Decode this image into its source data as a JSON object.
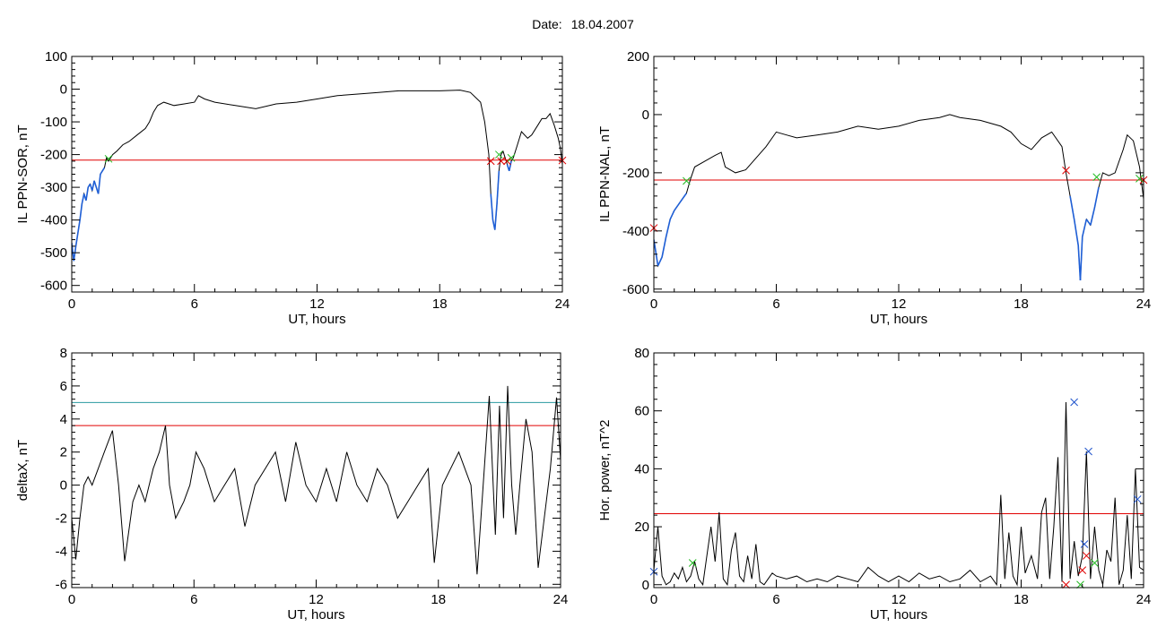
{
  "page": {
    "date_label": "Date:",
    "date_value": "18.04.2007"
  },
  "colors": {
    "trace": "#000000",
    "low_segment": "#1f5fd6",
    "threshold_red": "#e00000",
    "threshold_teal": "#2a9aa0",
    "marker_red": "#e00000",
    "marker_green": "#22bb22",
    "marker_blue": "#2255cc"
  },
  "chart_data": [
    {
      "id": "ppn-sor",
      "type": "line",
      "xlabel": "UT, hours",
      "ylabel": "IL PPN-SOR, nT",
      "xlim": [
        0,
        24
      ],
      "ylim": [
        -620,
        100
      ],
      "xticks": [
        0,
        6,
        12,
        18,
        24
      ],
      "yticks": [
        100,
        0,
        -100,
        -200,
        -300,
        -400,
        -500,
        -600
      ],
      "thresholds": [
        {
          "value": -217,
          "color": "#e00000"
        }
      ],
      "highlight_below": -217,
      "series": [
        {
          "x": [
            0,
            0.1,
            0.2,
            0.3,
            0.4,
            0.5,
            0.6,
            0.7,
            0.8,
            0.9,
            1.0,
            1.1,
            1.2,
            1.3,
            1.4,
            1.5,
            1.6,
            1.7,
            1.8,
            2.0,
            2.2,
            2.5,
            2.8,
            3.2,
            3.6,
            3.8,
            4.0,
            4.2,
            4.5,
            5.0,
            5.5,
            6.0,
            6.2,
            6.5,
            7,
            8,
            9,
            10,
            11,
            12,
            13,
            14,
            15,
            16,
            17,
            18,
            19,
            19.5,
            20.0,
            20.2,
            20.4,
            20.5,
            20.6,
            20.7,
            20.8,
            20.9,
            21.0,
            21.1,
            21.2,
            21.3,
            21.4,
            21.5,
            21.6,
            21.8,
            22.0,
            22.3,
            22.5,
            22.8,
            23.0,
            23.2,
            23.4,
            23.6,
            23.8,
            23.9,
            24.0
          ],
          "y": [
            -470,
            -525,
            -480,
            -440,
            -400,
            -350,
            -320,
            -340,
            -300,
            -290,
            -310,
            -280,
            -300,
            -320,
            -260,
            -250,
            -240,
            -210,
            -220,
            -200,
            -190,
            -170,
            -160,
            -140,
            -120,
            -100,
            -70,
            -50,
            -40,
            -50,
            -45,
            -40,
            -20,
            -30,
            -40,
            -50,
            -60,
            -45,
            -40,
            -30,
            -20,
            -15,
            -10,
            -5,
            -5,
            -5,
            -3,
            -10,
            -40,
            -100,
            -200,
            -320,
            -400,
            -430,
            -350,
            -250,
            -200,
            -190,
            -210,
            -230,
            -250,
            -220,
            -210,
            -170,
            -130,
            -150,
            -140,
            -110,
            -90,
            -90,
            -75,
            -110,
            -150,
            -180,
            -230
          ]
        }
      ],
      "markers": [
        {
          "x": 20.5,
          "y": -220,
          "color": "#e00000"
        },
        {
          "x": 21.0,
          "y": -220,
          "color": "#e00000"
        },
        {
          "x": 21.3,
          "y": -220,
          "color": "#e00000"
        },
        {
          "x": 24.0,
          "y": -218,
          "color": "#e00000"
        },
        {
          "x": 1.8,
          "y": -213,
          "color": "#22bb22"
        },
        {
          "x": 20.9,
          "y": -200,
          "color": "#22bb22"
        },
        {
          "x": 21.5,
          "y": -210,
          "color": "#22bb22"
        }
      ]
    },
    {
      "id": "ppn-nal",
      "type": "line",
      "xlabel": "UT, hours",
      "ylabel": "IL PPN-NAL, nT",
      "xlim": [
        0,
        24
      ],
      "ylim": [
        -610,
        200
      ],
      "xticks": [
        0,
        6,
        12,
        18,
        24
      ],
      "yticks": [
        200,
        0,
        -200,
        -400,
        -600
      ],
      "thresholds": [
        {
          "value": -225,
          "color": "#e00000"
        }
      ],
      "highlight_below": -225,
      "series": [
        {
          "x": [
            0,
            0.2,
            0.4,
            0.6,
            0.8,
            1.0,
            1.2,
            1.4,
            1.6,
            1.8,
            2.0,
            2.5,
            3.0,
            3.3,
            3.5,
            4.0,
            4.5,
            5.0,
            5.5,
            6.0,
            6.5,
            7,
            8,
            9,
            10,
            11,
            12,
            13,
            14,
            14.5,
            15,
            16,
            17,
            17.5,
            18,
            18.5,
            19.0,
            19.5,
            20.0,
            20.2,
            20.4,
            20.6,
            20.8,
            20.9,
            21.0,
            21.2,
            21.4,
            21.6,
            21.8,
            22.0,
            22.3,
            22.6,
            23.0,
            23.2,
            23.5,
            23.8,
            24.0
          ],
          "y": [
            -430,
            -520,
            -490,
            -420,
            -360,
            -330,
            -310,
            -290,
            -270,
            -220,
            -180,
            -160,
            -140,
            -130,
            -180,
            -200,
            -190,
            -150,
            -110,
            -60,
            -70,
            -80,
            -70,
            -60,
            -40,
            -50,
            -40,
            -20,
            -10,
            0,
            -10,
            -20,
            -40,
            -60,
            -100,
            -120,
            -80,
            -60,
            -110,
            -200,
            -280,
            -360,
            -450,
            -570,
            -420,
            -360,
            -380,
            -320,
            -250,
            -200,
            -210,
            -200,
            -120,
            -70,
            -90,
            -180,
            -290
          ]
        }
      ],
      "markers": [
        {
          "x": 0.0,
          "y": -390,
          "color": "#e00000"
        },
        {
          "x": 20.2,
          "y": -192,
          "color": "#e00000"
        },
        {
          "x": 24.0,
          "y": -225,
          "color": "#e00000"
        },
        {
          "x": 1.6,
          "y": -228,
          "color": "#22bb22"
        },
        {
          "x": 21.7,
          "y": -215,
          "color": "#22bb22"
        },
        {
          "x": 23.8,
          "y": -220,
          "color": "#22bb22"
        }
      ]
    },
    {
      "id": "deltax",
      "type": "line",
      "xlabel": "UT, hours",
      "ylabel": "deltaX, nT",
      "xlim": [
        0,
        24
      ],
      "ylim": [
        -6.2,
        8
      ],
      "xticks": [
        0,
        6,
        12,
        18,
        24
      ],
      "yticks": [
        8,
        6,
        4,
        2,
        0,
        -2,
        -4,
        -6
      ],
      "thresholds": [
        {
          "value": 5.0,
          "color": "#2a9aa0"
        },
        {
          "value": 3.6,
          "color": "#e00000"
        }
      ],
      "series": [
        {
          "x": [
            0,
            0.2,
            0.4,
            0.6,
            0.8,
            1.0,
            1.3,
            1.6,
            2.0,
            2.3,
            2.6,
            3.0,
            3.3,
            3.6,
            4.0,
            4.3,
            4.6,
            4.8,
            5.1,
            5.5,
            5.8,
            6.1,
            6.5,
            7.0,
            7.5,
            8.0,
            8.5,
            9.0,
            9.5,
            10.0,
            10.5,
            11.0,
            11.5,
            12.0,
            12.5,
            13.0,
            13.5,
            14.0,
            14.5,
            15.0,
            15.5,
            16.0,
            16.5,
            17.0,
            17.5,
            17.8,
            18.2,
            18.6,
            19.0,
            19.3,
            19.6,
            19.9,
            20.2,
            20.5,
            20.8,
            21.0,
            21.2,
            21.4,
            21.6,
            21.8,
            22.0,
            22.3,
            22.6,
            22.9,
            23.2,
            23.5,
            23.8,
            24.0
          ],
          "y": [
            -2,
            -4.5,
            -2,
            0,
            0.5,
            0,
            1,
            2,
            3.3,
            0,
            -4.6,
            -1,
            0,
            -1,
            1,
            2,
            3.6,
            0,
            -2,
            -1,
            0,
            2,
            1,
            -1,
            0,
            1,
            -2.5,
            0,
            1,
            2,
            -1,
            2.6,
            0,
            -1,
            1,
            -1,
            2,
            0,
            -1,
            1,
            0,
            -2,
            -1,
            0,
            1,
            -4.7,
            0,
            1,
            2,
            1,
            0,
            -5.4,
            0,
            5.4,
            -3,
            4.8,
            -2,
            6.0,
            0,
            -3,
            0,
            4,
            2,
            -5,
            -2,
            1,
            5.3,
            1.5
          ]
        }
      ],
      "markers": []
    },
    {
      "id": "hor-power",
      "type": "line",
      "xlabel": "UT, hours",
      "ylabel": "Hor. power, nT^2",
      "xlim": [
        0,
        24
      ],
      "ylim": [
        -1,
        80
      ],
      "xticks": [
        0,
        6,
        12,
        18,
        24
      ],
      "yticks": [
        80,
        60,
        40,
        20,
        0
      ],
      "thresholds": [
        {
          "value": 24.5,
          "color": "#e00000"
        }
      ],
      "series": [
        {
          "x": [
            0,
            0.2,
            0.4,
            0.6,
            0.8,
            1.0,
            1.2,
            1.4,
            1.6,
            1.8,
            2.0,
            2.2,
            2.4,
            2.6,
            2.8,
            3.0,
            3.2,
            3.4,
            3.6,
            3.8,
            4.0,
            4.2,
            4.4,
            4.6,
            4.8,
            5.0,
            5.2,
            5.4,
            5.6,
            5.8,
            6.0,
            6.5,
            7.0,
            7.5,
            8.0,
            8.5,
            9.0,
            9.5,
            10.0,
            10.5,
            11.0,
            11.5,
            12.0,
            12.5,
            13.0,
            13.5,
            14.0,
            14.5,
            15.0,
            15.5,
            16.0,
            16.5,
            16.8,
            17.0,
            17.2,
            17.4,
            17.6,
            17.8,
            18.0,
            18.2,
            18.5,
            18.8,
            19.0,
            19.2,
            19.4,
            19.6,
            19.8,
            20.0,
            20.2,
            20.4,
            20.6,
            20.8,
            21.0,
            21.2,
            21.4,
            21.6,
            21.8,
            22.0,
            22.2,
            22.4,
            22.6,
            22.8,
            23.0,
            23.2,
            23.4,
            23.6,
            23.8,
            24.0
          ],
          "y": [
            5,
            20,
            3,
            0,
            1,
            4,
            2,
            6,
            1,
            3,
            8,
            2,
            0,
            10,
            20,
            8,
            25,
            2,
            0,
            12,
            18,
            3,
            1,
            10,
            2,
            14,
            1,
            0,
            2,
            4,
            3,
            2,
            3,
            1,
            2,
            1,
            3,
            2,
            1,
            6,
            3,
            1,
            3,
            1,
            4,
            2,
            3,
            1,
            2,
            5,
            1,
            3,
            0,
            31,
            2,
            18,
            3,
            0,
            20,
            4,
            10,
            2,
            25,
            30,
            2,
            20,
            44,
            1,
            63,
            2,
            15,
            3,
            10,
            46,
            2,
            20,
            5,
            0,
            12,
            8,
            30,
            0,
            5,
            24,
            2,
            40,
            6,
            5
          ]
        }
      ],
      "markers": [
        {
          "x": 20.6,
          "y": 63,
          "color": "#2255cc"
        },
        {
          "x": 21.3,
          "y": 46,
          "color": "#2255cc"
        },
        {
          "x": 23.7,
          "y": 29.5,
          "color": "#2255cc"
        },
        {
          "x": 21.1,
          "y": 14,
          "color": "#2255cc"
        },
        {
          "x": 0.0,
          "y": 4.5,
          "color": "#2255cc"
        },
        {
          "x": 1.9,
          "y": 7.5,
          "color": "#22bb22"
        },
        {
          "x": 21.6,
          "y": 7.5,
          "color": "#22bb22"
        },
        {
          "x": 20.9,
          "y": 0,
          "color": "#22bb22"
        },
        {
          "x": 20.2,
          "y": 0,
          "color": "#e00000"
        },
        {
          "x": 21.0,
          "y": 5,
          "color": "#e00000"
        },
        {
          "x": 21.2,
          "y": 10,
          "color": "#e00000"
        }
      ]
    }
  ]
}
